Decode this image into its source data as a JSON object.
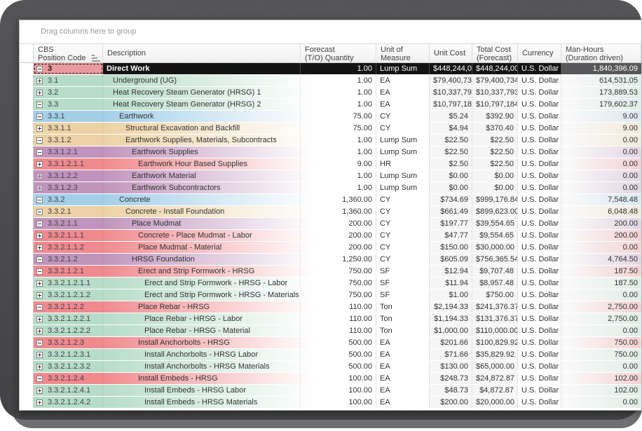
{
  "group_bar": {
    "label": "Drag columns here to group"
  },
  "columns": [
    {
      "key": "ind",
      "lines": []
    },
    {
      "key": "cbs",
      "lines": [
        "CBS",
        "Position Code"
      ],
      "sort_icon": true
    },
    {
      "key": "desc",
      "lines": [
        "Description"
      ]
    },
    {
      "key": "qty",
      "lines": [
        "Forecast",
        "(T/O) Quantity"
      ]
    },
    {
      "key": "uom",
      "lines": [
        "Unit of",
        "Measure"
      ]
    },
    {
      "key": "uc",
      "lines": [
        "Unit Cost"
      ]
    },
    {
      "key": "tc",
      "lines": [
        "Total Cost",
        "(Forecast)"
      ]
    },
    {
      "key": "cur",
      "lines": [
        "Currency"
      ]
    },
    {
      "key": "mh",
      "lines": [
        "Man-Hours",
        "(Duration driven)"
      ]
    }
  ],
  "selection_arrow": "→",
  "colors": {
    "levels": {
      "1": "#ea9a9e",
      "2": "#b7dcc8",
      "3": "#a3cfe8",
      "4": "#ecd2a4",
      "5": "#c094bd",
      "6": "#f08a8e",
      "7": "#b7dcc8"
    },
    "selected_cell_bg": "#141414",
    "selected_manhours_bg": "#58585a",
    "selected_cbs_bg": "#ea9a9e"
  },
  "rows": [
    {
      "code": "3",
      "level": 1,
      "icon": "minus",
      "selected": true,
      "desc": "Direct Work",
      "qty": "1.00",
      "uom": "Lump Sum",
      "uc": "$448,244,0...",
      "tc": "$448,244,00...",
      "cur": "U.S. Dollar",
      "mh": "1,840,396.09"
    },
    {
      "code": "3.1",
      "level": 2,
      "icon": "plus",
      "desc": "Underground (UG)",
      "qty": "1.00",
      "uom": "EA",
      "uc": "$79,400,73...",
      "tc": "$79,400,734...",
      "cur": "U.S. Dollar",
      "mh": "614,531.05"
    },
    {
      "code": "3.2",
      "level": 2,
      "icon": "plus",
      "desc": "Heat Recovery Steam Generator (HRSG) 1",
      "qty": "1.00",
      "uom": "EA",
      "uc": "$10,337,79...",
      "tc": "$10,337,793...",
      "cur": "U.S. Dollar",
      "mh": "173,889.53"
    },
    {
      "code": "3.3",
      "level": 2,
      "icon": "minus",
      "desc": "Heat Recovery Steam Generator (HRSG) 2",
      "qty": "1.00",
      "uom": "EA",
      "uc": "$10,797,18...",
      "tc": "$10,797,184...",
      "cur": "U.S. Dollar",
      "mh": "179,602.37"
    },
    {
      "code": "3.3.1",
      "level": 3,
      "icon": "minus",
      "desc": "Earthwork",
      "qty": "75.00",
      "uom": "CY",
      "uc": "$5.24",
      "tc": "$392.90",
      "cur": "U.S. Dollar",
      "mh": "9.00"
    },
    {
      "code": "3.3.1.1",
      "level": 4,
      "icon": "plus",
      "desc": "Structural Excavation and Backfill",
      "qty": "75.00",
      "uom": "CY",
      "uc": "$4.94",
      "tc": "$370.40",
      "cur": "U.S. Dollar",
      "mh": "9.00"
    },
    {
      "code": "3.3.1.2",
      "level": 4,
      "icon": "minus",
      "desc": "Earthwork Supplies, Materials, Subcontracts",
      "qty": "1.00",
      "uom": "Lump Sum",
      "uc": "$22.50",
      "tc": "$22.50",
      "cur": "U.S. Dollar",
      "mh": "0.00"
    },
    {
      "code": "3.3.1.2.1",
      "level": 5,
      "icon": "minus",
      "desc": "Earthwork Supplies",
      "qty": "1.00",
      "uom": "Lump Sum",
      "uc": "$22.50",
      "tc": "$22.50",
      "cur": "U.S. Dollar",
      "mh": "0.00"
    },
    {
      "code": "3.3.1.2.1.1",
      "level": 6,
      "icon": "plus",
      "desc": "Earthwork Hour Based Supplies",
      "qty": "9.00",
      "uom": "HR",
      "uc": "$2.50",
      "tc": "$22.50",
      "cur": "U.S. Dollar",
      "mh": "0.00"
    },
    {
      "code": "3.3.1.2.2",
      "level": 5,
      "icon": "plus",
      "faded": true,
      "desc": "Earthwork Material",
      "qty": "1.00",
      "uom": "Lump Sum",
      "uc": "$0.00",
      "tc": "$0.00",
      "cur": "U.S. Dollar",
      "mh": "0.00"
    },
    {
      "code": "3.3.1.2.3",
      "level": 5,
      "icon": "plus",
      "faded": true,
      "desc": "Earthwork Subcontractors",
      "qty": "1.00",
      "uom": "Lump Sum",
      "uc": "$0.00",
      "tc": "$0.00",
      "cur": "U.S. Dollar",
      "mh": "0.00"
    },
    {
      "code": "3.3.2",
      "level": 3,
      "icon": "minus",
      "desc": "Concrete",
      "qty": "1,360.00",
      "uom": "CY",
      "uc": "$734.69",
      "tc": "$999,176.84",
      "cur": "U.S. Dollar",
      "mh": "7,548.48"
    },
    {
      "code": "3.3.2.1",
      "level": 4,
      "icon": "minus",
      "desc": "Concrete - Install Foundation",
      "qty": "1,360.00",
      "uom": "CY",
      "uc": "$661.49",
      "tc": "$899,623.00",
      "cur": "U.S. Dollar",
      "mh": "6,048.48"
    },
    {
      "code": "3.3.2.1.1",
      "level": 5,
      "icon": "minus",
      "desc": "Place Mudmat",
      "qty": "200.00",
      "uom": "CY",
      "uc": "$197.77",
      "tc": "$39,554.65",
      "cur": "U.S. Dollar",
      "mh": "200.00"
    },
    {
      "code": "3.3.2.1.1.1",
      "level": 6,
      "icon": "plus",
      "desc": "Concrete - Place Mudmat - Labor",
      "qty": "200.00",
      "uom": "CY",
      "uc": "$47.77",
      "tc": "$9,554.65",
      "cur": "U.S. Dollar",
      "mh": "200.00"
    },
    {
      "code": "3.3.2.1.1.2",
      "level": 6,
      "icon": "plus",
      "desc": "Place Mudmat - Material",
      "qty": "200.00",
      "uom": "CY",
      "uc": "$150.00",
      "tc": "$30,000.00",
      "cur": "U.S. Dollar",
      "mh": "0.00"
    },
    {
      "code": "3.3.2.1.2",
      "level": 5,
      "icon": "minus",
      "desc": "HRSG Foundation",
      "qty": "1,250.00",
      "uom": "CY",
      "uc": "$605.09",
      "tc": "$756,365.54",
      "cur": "U.S. Dollar",
      "mh": "4,764.50"
    },
    {
      "code": "3.3.2.1.2.1",
      "level": 6,
      "icon": "minus",
      "desc": "Erect and Strip Formwork - HRSG",
      "qty": "750.00",
      "uom": "SF",
      "uc": "$12.94",
      "tc": "$9,707.48",
      "cur": "U.S. Dollar",
      "mh": "187.50"
    },
    {
      "code": "3.3.2.1.2.1.1",
      "level": 7,
      "icon": "plus",
      "desc": "Erect and Strip Formwork - HRSG - Labor",
      "qty": "750.00",
      "uom": "SF",
      "uc": "$11.94",
      "tc": "$8,957.48",
      "cur": "U.S. Dollar",
      "mh": "187.50"
    },
    {
      "code": "3.3.2.1.2.1.2",
      "level": 7,
      "icon": "plus",
      "desc": "Erect and Strip Formwork - HRSG - Materials",
      "qty": "750.00",
      "uom": "SF",
      "uc": "$1.00",
      "tc": "$750.00",
      "cur": "U.S. Dollar",
      "mh": "0.00"
    },
    {
      "code": "3.3.2.1.2.2",
      "level": 6,
      "icon": "minus",
      "desc": "Place Rebar - HRSG",
      "qty": "110.00",
      "uom": "Ton",
      "uc": "$2,194.33",
      "tc": "$241,376.37",
      "cur": "U.S. Dollar",
      "mh": "2,750.00"
    },
    {
      "code": "3.3.2.1.2.2.1",
      "level": 7,
      "icon": "plus",
      "desc": "Place Rebar - HRSG - Labor",
      "qty": "110.00",
      "uom": "Ton",
      "uc": "$1,194.33",
      "tc": "$131,376.37",
      "cur": "U.S. Dollar",
      "mh": "2,750.00"
    },
    {
      "code": "3.3.2.1.2.2.2",
      "level": 7,
      "icon": "plus",
      "desc": "Place Rebar - HRSG - Material",
      "qty": "110.00",
      "uom": "Ton",
      "uc": "$1,000.00",
      "tc": "$110,000.00",
      "cur": "U.S. Dollar",
      "mh": "0.00"
    },
    {
      "code": "3.3.2.1.2.3",
      "level": 6,
      "icon": "minus",
      "desc": "Install Anchorbolts - HRSG",
      "qty": "500.00",
      "uom": "EA",
      "uc": "$201.66",
      "tc": "$100,829.92",
      "cur": "U.S. Dollar",
      "mh": "750.00"
    },
    {
      "code": "3.3.2.1.2.3.1",
      "level": 7,
      "icon": "plus",
      "desc": "Install Anchorbolts - HRSG Labor",
      "qty": "500.00",
      "uom": "EA",
      "uc": "$71.66",
      "tc": "$35,829.92",
      "cur": "U.S. Dollar",
      "mh": "750.00"
    },
    {
      "code": "3.3.2.1.2.3.2",
      "level": 7,
      "icon": "plus",
      "desc": "Install Anchorbolts - HRSG Materials",
      "qty": "500.00",
      "uom": "EA",
      "uc": "$130.00",
      "tc": "$65,000.00",
      "cur": "U.S. Dollar",
      "mh": "0.00"
    },
    {
      "code": "3.3.2.1.2.4",
      "level": 6,
      "icon": "minus",
      "desc": "Install Embeds - HRSG",
      "qty": "100.00",
      "uom": "EA",
      "uc": "$248.73",
      "tc": "$24,872.87",
      "cur": "U.S. Dollar",
      "mh": "102.00"
    },
    {
      "code": "3.3.2.1.2.4.1",
      "level": 7,
      "icon": "plus",
      "desc": "Install Embeds - HRSG Labor",
      "qty": "100.00",
      "uom": "EA",
      "uc": "$48.73",
      "tc": "$4,872.87",
      "cur": "U.S. Dollar",
      "mh": "102.00"
    },
    {
      "code": "3.3.2.1.2.4.2",
      "level": 7,
      "icon": "plus",
      "desc": "Install Embeds - HRSG Materials",
      "qty": "100.00",
      "uom": "EA",
      "uc": "$200.00",
      "tc": "$20,000.00",
      "cur": "U.S. Dollar",
      "mh": "0.00"
    }
  ]
}
